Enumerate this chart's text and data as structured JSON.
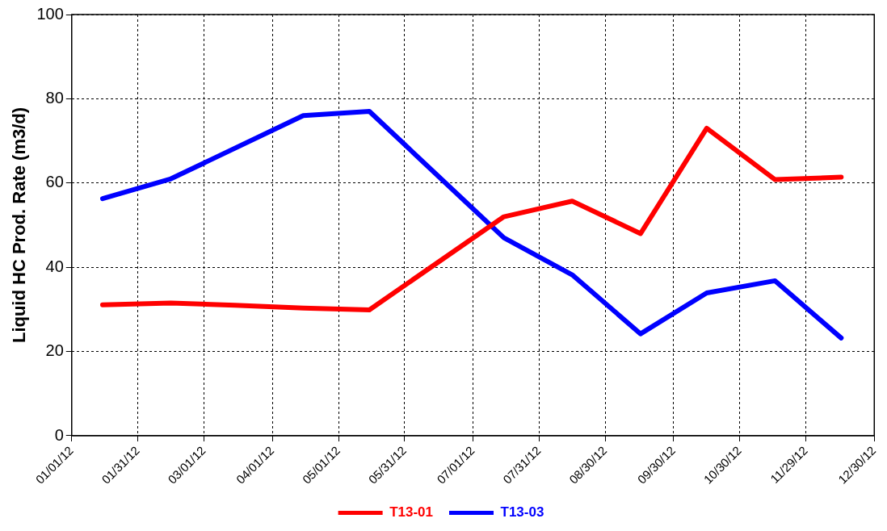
{
  "chart_data": {
    "type": "line",
    "ylabel": "Liquid HC Prod. Rate (m3/d)",
    "xlim": [
      "2012-01-01",
      "2012-12-30"
    ],
    "xticks": [
      {
        "value": "2012-01-01",
        "label": "01/01/12"
      },
      {
        "value": "2012-01-31",
        "label": "01/31/12"
      },
      {
        "value": "2012-03-01",
        "label": "03/01/12"
      },
      {
        "value": "2012-04-01",
        "label": "04/01/12"
      },
      {
        "value": "2012-05-01",
        "label": "05/01/12"
      },
      {
        "value": "2012-05-31",
        "label": "05/31/12"
      },
      {
        "value": "2012-07-01",
        "label": "07/01/12"
      },
      {
        "value": "2012-07-31",
        "label": "07/31/12"
      },
      {
        "value": "2012-08-30",
        "label": "08/30/12"
      },
      {
        "value": "2012-09-30",
        "label": "09/30/12"
      },
      {
        "value": "2012-10-30",
        "label": "10/30/12"
      },
      {
        "value": "2012-11-29",
        "label": "11/29/12"
      },
      {
        "value": "2012-12-30",
        "label": "12/30/12"
      }
    ],
    "ylim": [
      0,
      100
    ],
    "yticks": [
      0,
      20,
      40,
      60,
      80,
      100
    ],
    "grid": true,
    "legend": "bottom",
    "marker": "none",
    "line_style": "solid",
    "series": [
      {
        "name": "T13-01",
        "color": "#ff0000",
        "x": [
          "2012-01-15",
          "2012-02-15",
          "2012-03-15",
          "2012-04-15",
          "2012-05-15",
          "2012-07-15",
          "2012-08-15",
          "2012-09-15",
          "2012-10-15",
          "2012-11-15",
          "2012-12-15"
        ],
        "values": [
          31.1,
          31.5,
          31,
          30.3,
          29.9,
          52,
          55.7,
          48,
          73,
          60.8,
          61.4
        ]
      },
      {
        "name": "T13-03",
        "color": "#0000ff",
        "x": [
          "2012-01-15",
          "2012-02-15",
          "2012-04-15",
          "2012-05-15",
          "2012-07-15",
          "2012-08-15",
          "2012-09-15",
          "2012-10-15",
          "2012-11-15",
          "2012-12-15"
        ],
        "values": [
          56.3,
          61,
          76,
          77,
          47,
          38.2,
          24.2,
          33.9,
          36.8,
          23.2
        ]
      }
    ]
  }
}
